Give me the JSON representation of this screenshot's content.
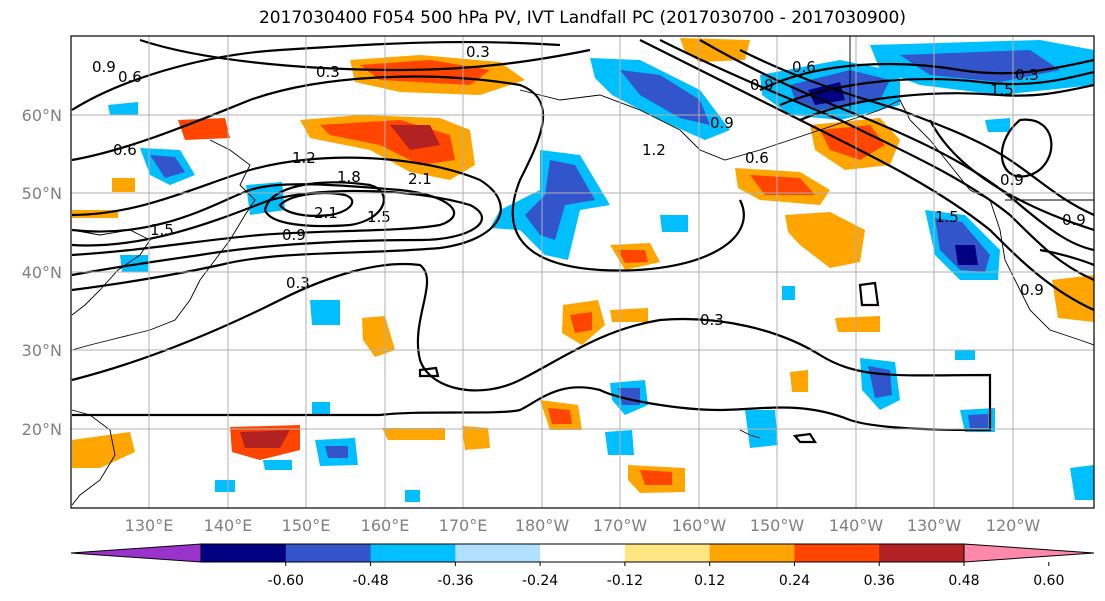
{
  "title": "2017030400 F054 500 hPa PV, IVT Landfall PC (2017030700 - 2017030900)",
  "lat_labels": [
    "20°N",
    "30°N",
    "40°N",
    "50°N",
    "60°N"
  ],
  "lon_labels": [
    "130°E",
    "140°E",
    "150°E",
    "160°E",
    "170°E",
    "180°W",
    "170°W",
    "160°W",
    "150°W",
    "140°W",
    "130°W",
    "120°W"
  ],
  "colorbar": {
    "ticks": [
      "-0.60",
      "-0.48",
      "-0.36",
      "-0.24",
      "-0.12",
      "0.12",
      "0.24",
      "0.36",
      "0.48",
      "0.60"
    ],
    "colors": [
      "#9933cc",
      "#000080",
      "#3355cc",
      "#00bfff",
      "#b0e0ff",
      "#ffffff",
      "#ffe680",
      "#ffa500",
      "#ff4500",
      "#b22222",
      "#ff88aa"
    ]
  },
  "contour_labels": [
    "0.9",
    "0.6",
    "0.3",
    "0.3",
    "0.6",
    "1.2",
    "1.8",
    "2.1",
    "2.1",
    "1.5",
    "1.5",
    "0.9",
    "0.3",
    "0.3",
    "1.2",
    "0.9",
    "0.6",
    "0.6",
    "0.9",
    "1.5",
    "0.3",
    "0.9",
    "0.9",
    "1.5",
    "0.9"
  ]
}
